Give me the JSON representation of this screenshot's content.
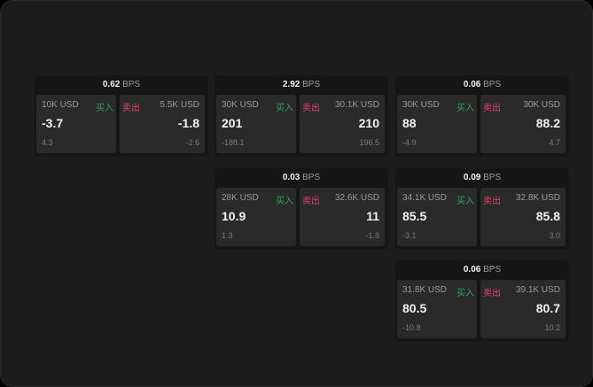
{
  "labels": {
    "buy": "买入",
    "sell": "卖出",
    "unit": "BPS"
  },
  "colors": {
    "buy": "#2fa45c",
    "sell": "#e0436b"
  },
  "panels": [
    {
      "spread": "0.62",
      "buy": {
        "qty": "10K USD",
        "price": "-3.7",
        "change": "4.3"
      },
      "sell": {
        "qty": "5.5K USD",
        "price": "-1.8",
        "change": "-2.6"
      }
    },
    {
      "spread": "2.92",
      "buy": {
        "qty": "30K USD",
        "price": "201",
        "change": "-188.1"
      },
      "sell": {
        "qty": "30.1K USD",
        "price": "210",
        "change": "196.5"
      }
    },
    {
      "spread": "0.06",
      "buy": {
        "qty": "30K USD",
        "price": "88",
        "change": "-4.9"
      },
      "sell": {
        "qty": "30K USD",
        "price": "88.2",
        "change": "4.7"
      }
    },
    {
      "spread": "0.03",
      "buy": {
        "qty": "28K USD",
        "price": "10.9",
        "change": "1.3"
      },
      "sell": {
        "qty": "32.6K USD",
        "price": "11",
        "change": "-1.8"
      }
    },
    {
      "spread": "0.09",
      "buy": {
        "qty": "34.1K USD",
        "price": "85.5",
        "change": "-3.1"
      },
      "sell": {
        "qty": "32.8K USD",
        "price": "85.8",
        "change": "3.0"
      }
    },
    {
      "spread": "0.06",
      "buy": {
        "qty": "31.8K USD",
        "price": "80.5",
        "change": "-10.8"
      },
      "sell": {
        "qty": "39.1K USD",
        "price": "80.7",
        "change": "10.2"
      }
    }
  ]
}
